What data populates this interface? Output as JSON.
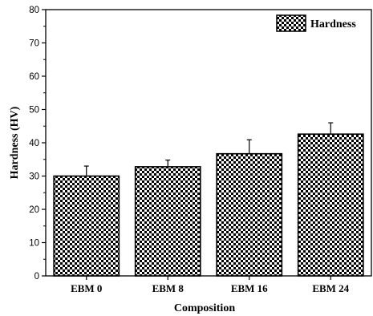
{
  "chart_data": {
    "type": "bar",
    "categories": [
      "EBM 0",
      "EBM 8",
      "EBM 16",
      "EBM 24"
    ],
    "series": [
      {
        "name": "Hardness",
        "values": [
          30,
          32.8,
          36.7,
          42.6
        ],
        "errors": [
          3,
          2,
          4.2,
          3.4
        ]
      }
    ],
    "xlabel": "Composition",
    "ylabel": "Hardness (HV)",
    "ylim": [
      0,
      80
    ],
    "yticks": [
      0,
      10,
      20,
      30,
      40,
      50,
      60,
      70,
      80
    ],
    "legend_position": "top-right",
    "bar_pattern": "checkerboard",
    "colors": {
      "bar_fill": "#000000",
      "bar_pattern_light": "#ffffff",
      "axis": "#000000"
    }
  }
}
